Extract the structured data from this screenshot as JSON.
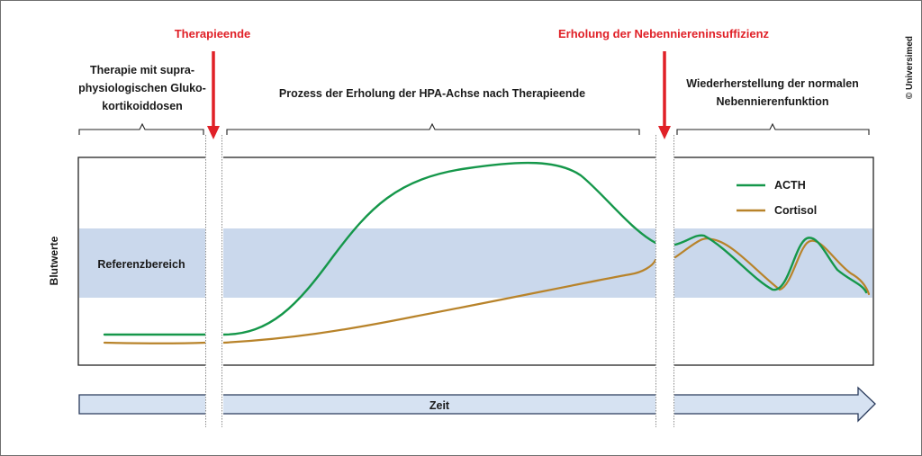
{
  "markers": {
    "therapy_end": "Therapieende",
    "recovery": "Erholung der Nebenniereninsuffizienz"
  },
  "phases": {
    "phase1": [
      "Therapie mit supra-",
      "physiologischen Gluko-",
      "kortikoiddosen"
    ],
    "phase2": [
      "Prozess der Erholung der HPA-Achse nach Therapieende"
    ],
    "phase3": [
      "Wiederherstellung der normalen",
      "Nebennierenfunktion"
    ]
  },
  "y_axis_label": "Blutwerte",
  "reference_label": "Referenzbereich",
  "time_label": "Zeit",
  "legend": {
    "acth": "ACTH",
    "cortisol": "Cortisol"
  },
  "copyright": "© Universimed",
  "colors": {
    "acth": "#15974a",
    "cortisol": "#b8832a",
    "reference_band": "#cad8ec",
    "marker": "#e02027",
    "time_arrow": "#d6e2f2"
  }
}
